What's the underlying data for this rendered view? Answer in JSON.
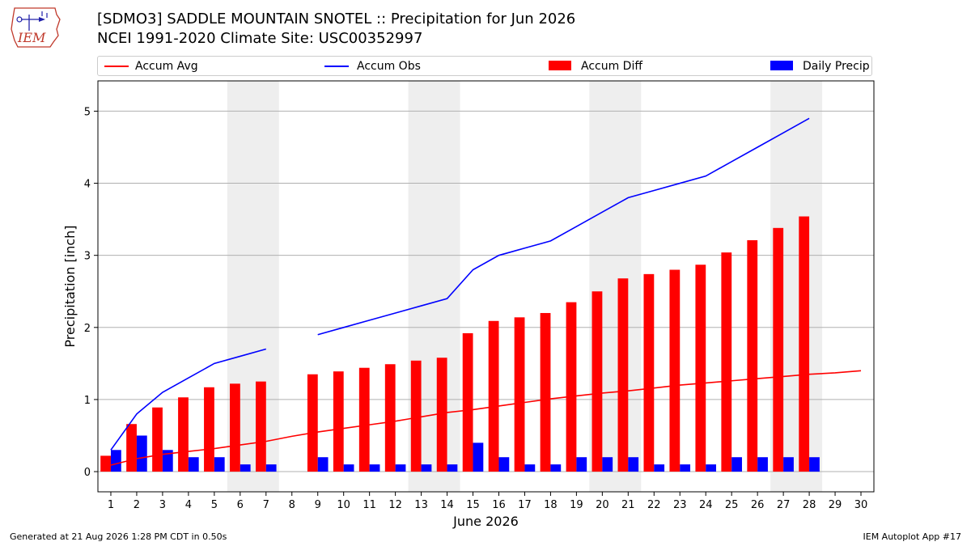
{
  "header": {
    "title_line1": "[SDMO3] SADDLE MOUNTAIN SNOTEL :: Precipitation for Jun 2026",
    "title_line2": "NCEI 1991-2020 Climate Site: USC00352997"
  },
  "logo": {
    "text": "IEM",
    "icon": "iem-iowa-logo-icon"
  },
  "footer": {
    "left": "Generated at 21 Aug 2026 1:28 PM CDT in 0.50s",
    "right": "IEM Autoplot App #17"
  },
  "colors": {
    "avg": "#ff0000",
    "obs": "#0000ff",
    "diff": "#ff0000",
    "daily": "#0000ff",
    "weekend": "#eeeeee"
  },
  "legend": [
    {
      "label": "Accum Avg",
      "kind": "line",
      "color": "#ff0000"
    },
    {
      "label": "Accum Obs",
      "kind": "line",
      "color": "#0000ff"
    },
    {
      "label": "Accum Diff",
      "kind": "box",
      "color": "#ff0000"
    },
    {
      "label": "Daily Precip",
      "kind": "box",
      "color": "#0000ff"
    }
  ],
  "chart_data": {
    "type": "bar",
    "xlabel": "June 2026",
    "ylabel": "Precipitation [inch]",
    "xlim": [
      0.5,
      30.5
    ],
    "ylim": [
      -0.28,
      5.42
    ],
    "yticks": [
      0,
      1,
      2,
      3,
      4,
      5
    ],
    "grid": "horizontal",
    "legend_position": "top",
    "days": [
      1,
      2,
      3,
      4,
      5,
      6,
      7,
      8,
      9,
      10,
      11,
      12,
      13,
      14,
      15,
      16,
      17,
      18,
      19,
      20,
      21,
      22,
      23,
      24,
      25,
      26,
      27,
      28,
      29,
      30
    ],
    "weekend_shading": [
      [
        5.5,
        7.5
      ],
      [
        12.5,
        14.5
      ],
      [
        19.5,
        21.5
      ],
      [
        26.5,
        28.5
      ]
    ],
    "series": [
      {
        "name": "Accum Avg",
        "type": "line",
        "values": [
          0.09,
          0.18,
          0.24,
          0.28,
          0.32,
          0.37,
          0.42,
          0.49,
          0.55,
          0.6,
          0.65,
          0.7,
          0.76,
          0.82,
          0.86,
          0.91,
          0.96,
          1.01,
          1.05,
          1.09,
          1.12,
          1.16,
          1.2,
          1.23,
          1.26,
          1.29,
          1.32,
          1.35,
          1.37,
          1.4
        ]
      },
      {
        "name": "Accum Obs",
        "type": "line",
        "values": [
          0.3,
          0.8,
          1.1,
          1.3,
          1.5,
          1.6,
          1.7,
          null,
          1.9,
          2.0,
          2.1,
          2.2,
          2.3,
          2.4,
          2.8,
          3.0,
          3.1,
          3.2,
          3.4,
          3.6,
          3.8,
          3.9,
          4.0,
          4.1,
          4.3,
          4.5,
          4.7,
          4.9,
          null,
          null
        ]
      },
      {
        "name": "Accum Diff",
        "type": "bar",
        "values": [
          0.22,
          0.66,
          0.89,
          1.03,
          1.17,
          1.22,
          1.25,
          null,
          1.35,
          1.39,
          1.44,
          1.49,
          1.54,
          1.58,
          1.92,
          2.09,
          2.14,
          2.2,
          2.35,
          2.5,
          2.68,
          2.74,
          2.8,
          2.87,
          3.04,
          3.21,
          3.38,
          3.54,
          null,
          null
        ]
      },
      {
        "name": "Daily Precip",
        "type": "bar",
        "values": [
          0.3,
          0.5,
          0.3,
          0.2,
          0.2,
          0.1,
          0.1,
          null,
          0.2,
          0.1,
          0.1,
          0.1,
          0.1,
          0.1,
          0.4,
          0.2,
          0.1,
          0.1,
          0.2,
          0.2,
          0.2,
          0.1,
          0.1,
          0.1,
          0.2,
          0.2,
          0.2,
          0.2,
          null,
          null
        ]
      }
    ]
  }
}
